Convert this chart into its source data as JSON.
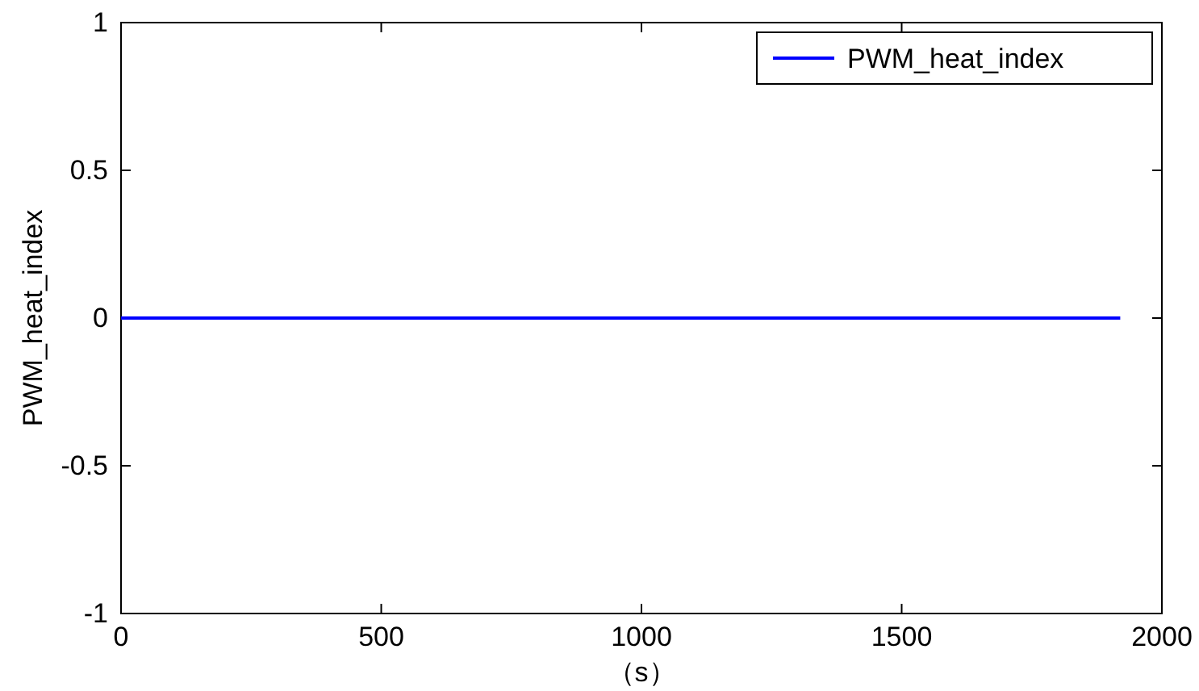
{
  "chart_data": {
    "type": "line",
    "xlabel": "（s）",
    "ylabel": "PWM_heat_index",
    "x": [
      0,
      1920
    ],
    "series": [
      {
        "name": "PWM_heat_index",
        "color": "#0000ff",
        "values": [
          0,
          0
        ]
      }
    ],
    "xlim": [
      0,
      2000
    ],
    "xticks": [
      0,
      500,
      1000,
      1500,
      2000
    ],
    "ylim": [
      -1,
      1
    ],
    "yticks": [
      -1,
      -0.5,
      0,
      0.5,
      1
    ],
    "grid": false,
    "legend": "top right",
    "line_style": "solid",
    "marker": "none"
  }
}
